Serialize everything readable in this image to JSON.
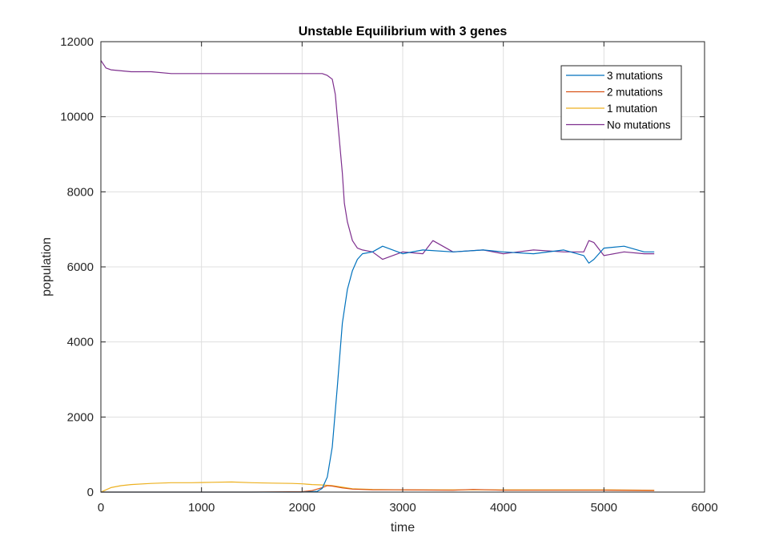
{
  "chart_data": {
    "type": "line",
    "title": "Unstable Equilibrium with 3 genes",
    "xlabel": "time",
    "ylabel": "population",
    "xlim": [
      0,
      6000
    ],
    "ylim": [
      0,
      12000
    ],
    "xticks": [
      0,
      1000,
      2000,
      3000,
      4000,
      5000,
      6000
    ],
    "yticks": [
      0,
      2000,
      4000,
      6000,
      8000,
      10000,
      12000
    ],
    "x_tick_labels": [
      "0",
      "1000",
      "2000",
      "3000",
      "4000",
      "5000",
      "6000"
    ],
    "y_tick_labels": [
      "0",
      "2000",
      "4000",
      "6000",
      "8000",
      "10000",
      "12000"
    ],
    "grid": true,
    "legend_position": "top-right",
    "series": [
      {
        "name": "3 mutations",
        "color": "#0072BD",
        "x": [
          0,
          500,
          1000,
          1500,
          2000,
          2150,
          2200,
          2250,
          2300,
          2350,
          2400,
          2450,
          2500,
          2550,
          2600,
          2700,
          2800,
          3000,
          3200,
          3500,
          3800,
          4000,
          4300,
          4600,
          4800,
          4850,
          4900,
          5000,
          5200,
          5400,
          5500
        ],
        "y": [
          0,
          0,
          0,
          0,
          0,
          20,
          100,
          400,
          1200,
          2800,
          4500,
          5400,
          5900,
          6200,
          6350,
          6400,
          6550,
          6350,
          6450,
          6400,
          6450,
          6400,
          6350,
          6450,
          6300,
          6100,
          6200,
          6500,
          6550,
          6400,
          6400
        ]
      },
      {
        "name": "2 mutations",
        "color": "#D95319",
        "x": [
          0,
          500,
          1000,
          1500,
          2000,
          2100,
          2200,
          2250,
          2300,
          2400,
          2500,
          2700,
          3000,
          3500,
          3700,
          4000,
          4500,
          5000,
          5500
        ],
        "y": [
          0,
          0,
          0,
          0,
          10,
          40,
          120,
          170,
          160,
          110,
          80,
          60,
          60,
          50,
          70,
          50,
          50,
          50,
          40
        ]
      },
      {
        "name": "1 mutation",
        "color": "#EDB120",
        "x": [
          0,
          100,
          200,
          300,
          500,
          700,
          900,
          1100,
          1300,
          1500,
          1700,
          1900,
          2000,
          2100,
          2200,
          2300,
          2400,
          2500,
          2700,
          3000,
          3500,
          4000,
          4500,
          5000,
          5500
        ],
        "y": [
          0,
          120,
          170,
          200,
          230,
          250,
          250,
          260,
          270,
          250,
          240,
          230,
          220,
          200,
          190,
          170,
          130,
          90,
          70,
          60,
          60,
          60,
          60,
          60,
          50
        ]
      },
      {
        "name": "No mutations",
        "color": "#7E2F8E",
        "x": [
          0,
          50,
          100,
          300,
          500,
          700,
          900,
          1100,
          1300,
          1500,
          1700,
          1900,
          2100,
          2200,
          2250,
          2300,
          2330,
          2350,
          2400,
          2420,
          2450,
          2500,
          2550,
          2600,
          2700,
          2800,
          3000,
          3200,
          3300,
          3500,
          3800,
          4000,
          4300,
          4600,
          4800,
          4850,
          4900,
          5000,
          5200,
          5400,
          5500
        ],
        "y": [
          11500,
          11300,
          11250,
          11200,
          11200,
          11150,
          11150,
          11150,
          11150,
          11150,
          11150,
          11150,
          11150,
          11150,
          11100,
          11000,
          10600,
          10000,
          8500,
          7700,
          7200,
          6700,
          6500,
          6450,
          6400,
          6200,
          6400,
          6350,
          6700,
          6400,
          6450,
          6350,
          6450,
          6400,
          6400,
          6700,
          6650,
          6300,
          6400,
          6350,
          6350
        ]
      }
    ]
  }
}
